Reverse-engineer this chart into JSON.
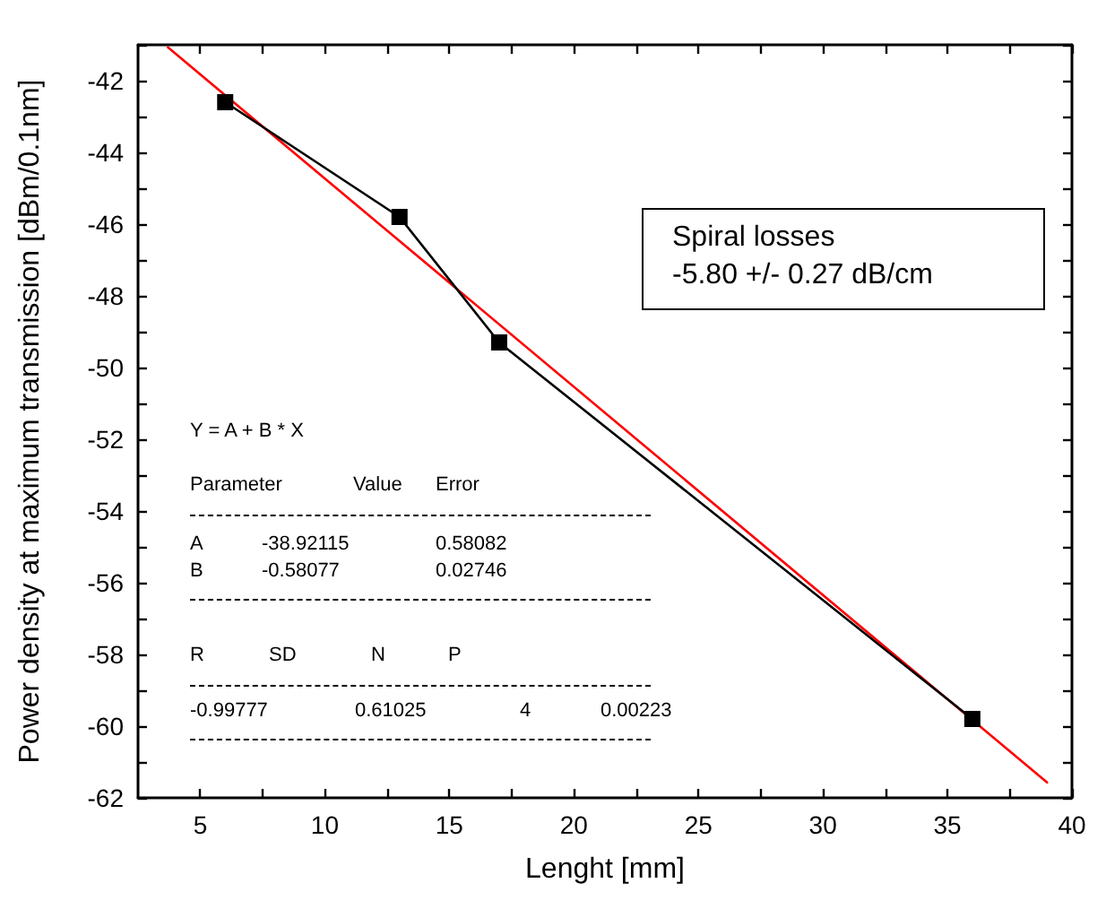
{
  "chart_data": {
    "type": "line",
    "xlabel": "Lenght [mm]",
    "ylabel": "Power density at maximum transmission [dBm/0.1nm]",
    "xlim": [
      2.5,
      40
    ],
    "ylim": [
      -62,
      -41
    ],
    "xticks": [
      5,
      {
        "value": 7.5,
        "label": null
      },
      10,
      {
        "value": 12.5,
        "label": null
      },
      15,
      {
        "value": 17.5,
        "label": null
      },
      20,
      {
        "value": 22.5,
        "label": null
      },
      25,
      {
        "value": 27.5,
        "label": null
      },
      30,
      {
        "value": 32.5,
        "label": null
      },
      35,
      {
        "value": 37.5,
        "label": null
      },
      40
    ],
    "yticks": [
      -62,
      {
        "value": -61,
        "label": null
      },
      -60,
      {
        "value": -59,
        "label": null
      },
      -58,
      {
        "value": -57,
        "label": null
      },
      -56,
      {
        "value": -55,
        "label": null
      },
      -54,
      {
        "value": -53,
        "label": null
      },
      -52,
      {
        "value": -51,
        "label": null
      },
      -50,
      {
        "value": -49,
        "label": null
      },
      -48,
      {
        "value": -47,
        "label": null
      },
      -46,
      {
        "value": -45,
        "label": null
      },
      -44,
      {
        "value": -43,
        "label": null
      },
      -42,
      {
        "value": -41,
        "label": null
      }
    ],
    "grid": false,
    "series": [
      {
        "color": "#000000",
        "marker": "square",
        "line_style": "solid",
        "x": [
          6,
          13,
          17,
          36
        ],
        "values": [
          -42.6,
          -45.8,
          -49.3,
          -59.8
        ]
      },
      {
        "color": "#ff0000",
        "marker": "none",
        "line_style": "solid",
        "x": [
          3.7,
          39
        ],
        "values": [
          -41.07,
          -61.57
        ]
      }
    ],
    "annotations": [
      "Spiral losses\n-5.80 +/- 0.27 dB/cm",
      "Y = A + B * X",
      "Parameter",
      "Value",
      "Error",
      "A",
      "-38.92115",
      "0.58082",
      "B",
      "-0.58077",
      "0.02746",
      "R",
      "SD",
      "N",
      "P",
      "-0.99777",
      "0.61025",
      "4",
      "0.00223"
    ]
  }
}
